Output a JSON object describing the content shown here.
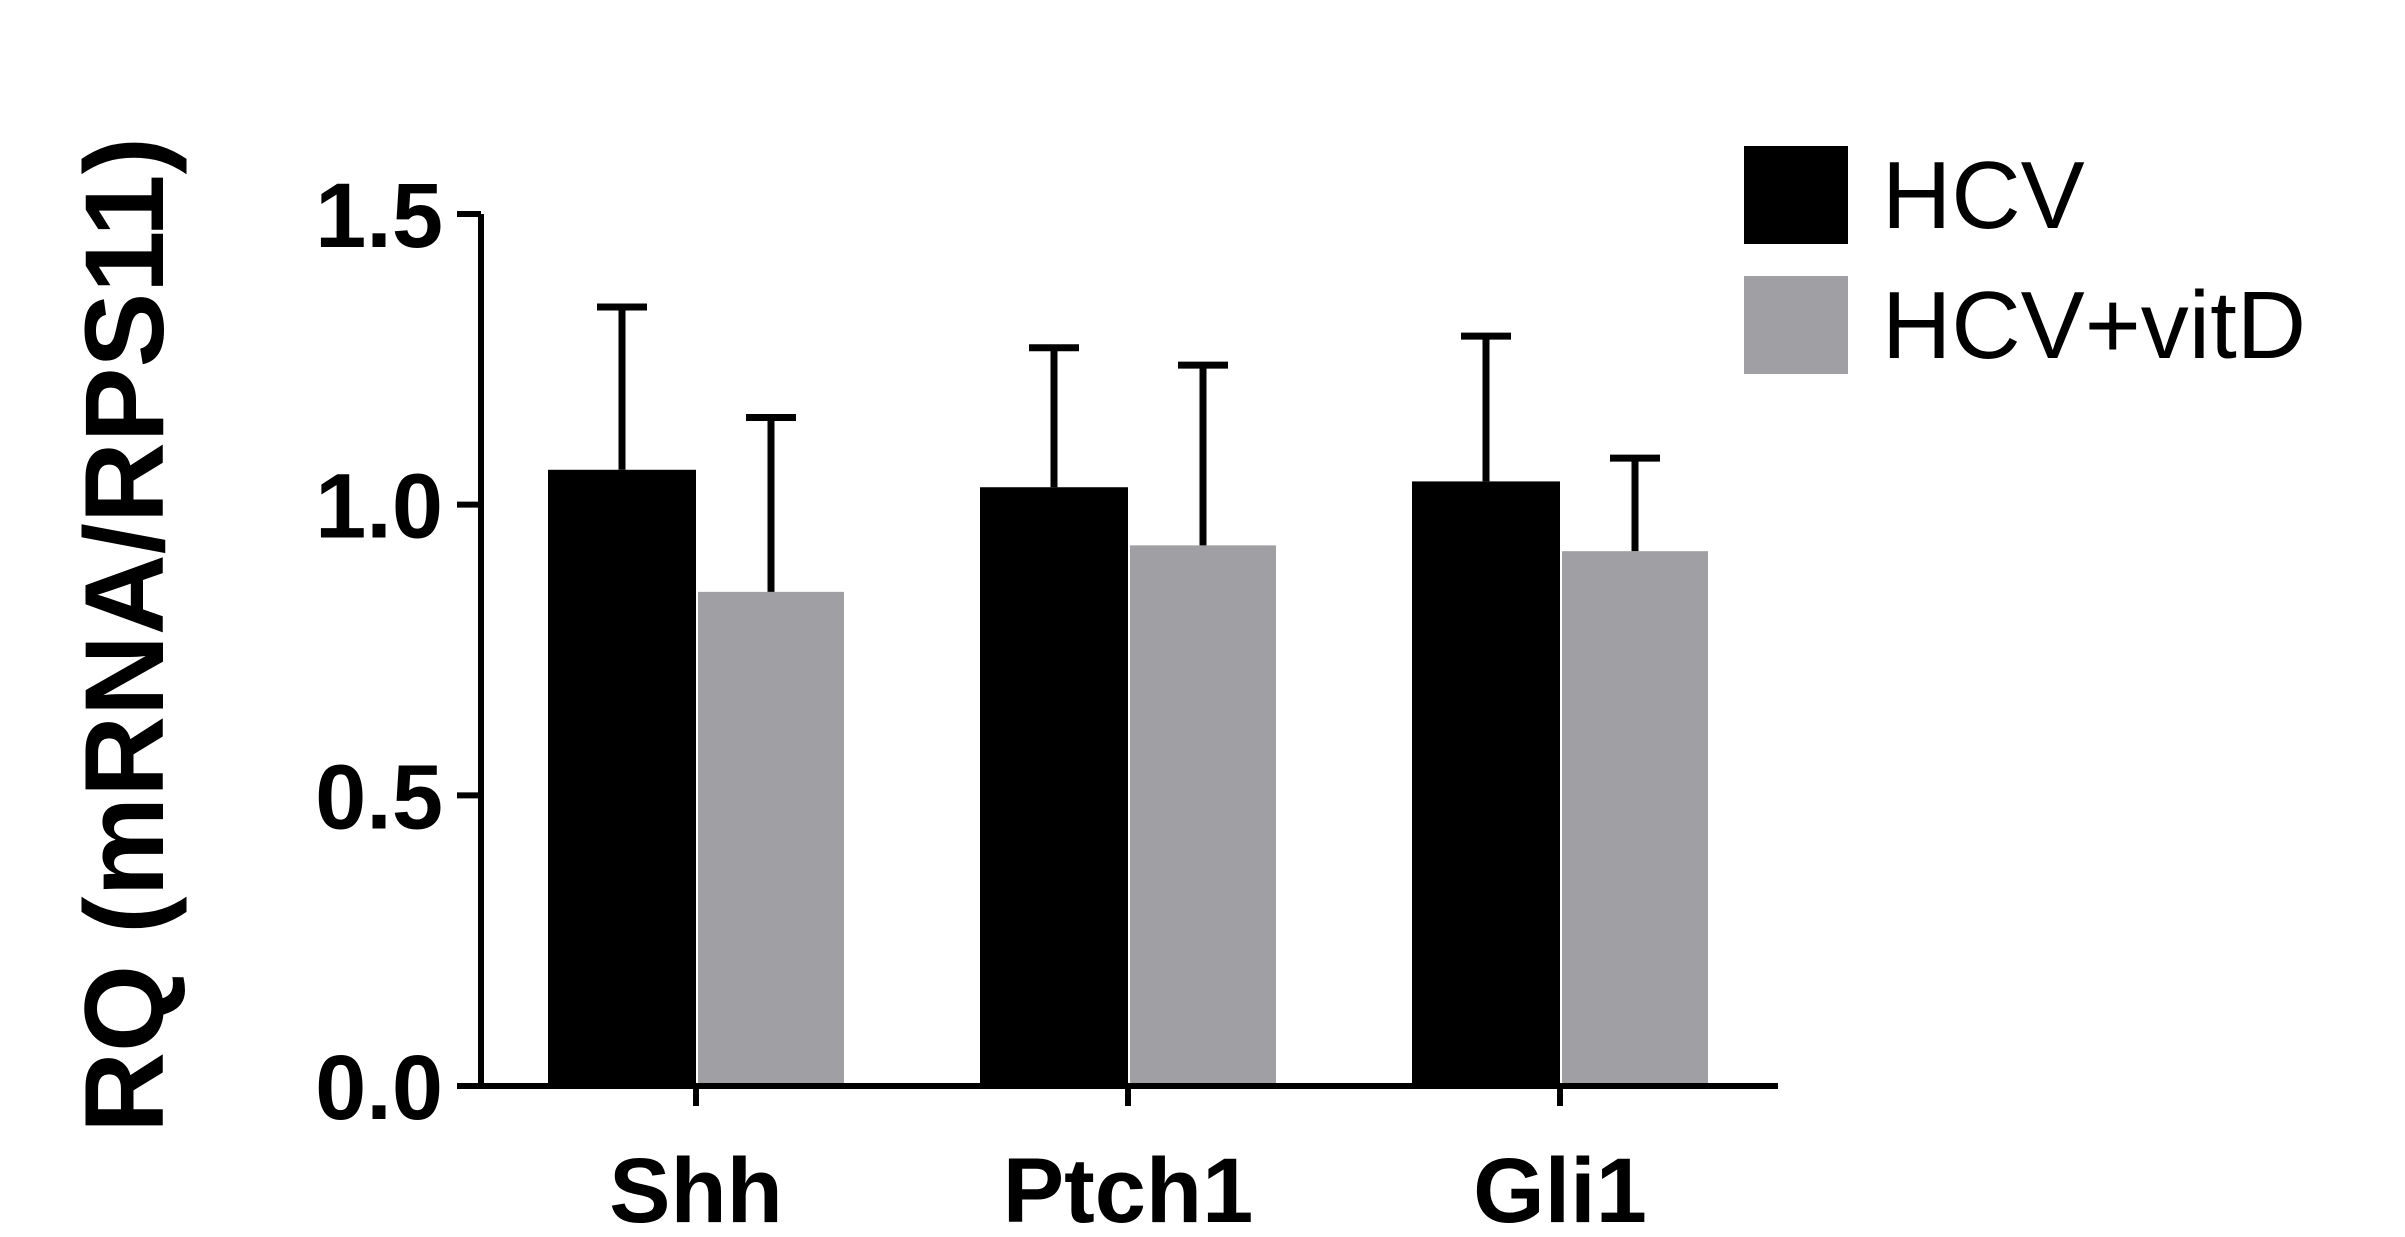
{
  "chart_data": {
    "type": "bar",
    "title": "",
    "xlabel": "",
    "ylabel": "RQ (mRNA/RPS11)",
    "ylim": [
      0,
      1.5
    ],
    "yticks": [
      "0.0",
      "0.5",
      "1.0",
      "1.5"
    ],
    "categories": [
      "Shh",
      "Ptch1",
      "Gli1"
    ],
    "series": [
      {
        "name": "HCV",
        "color": "#000000",
        "values": [
          1.06,
          1.03,
          1.04
        ],
        "errors": [
          0.28,
          0.24,
          0.25
        ]
      },
      {
        "name": "HCV+vitD",
        "color": "#a0a0a4",
        "values": [
          0.85,
          0.93,
          0.92
        ],
        "errors": [
          0.3,
          0.31,
          0.16
        ]
      }
    ],
    "legend_position": "top-right",
    "grid": false
  }
}
